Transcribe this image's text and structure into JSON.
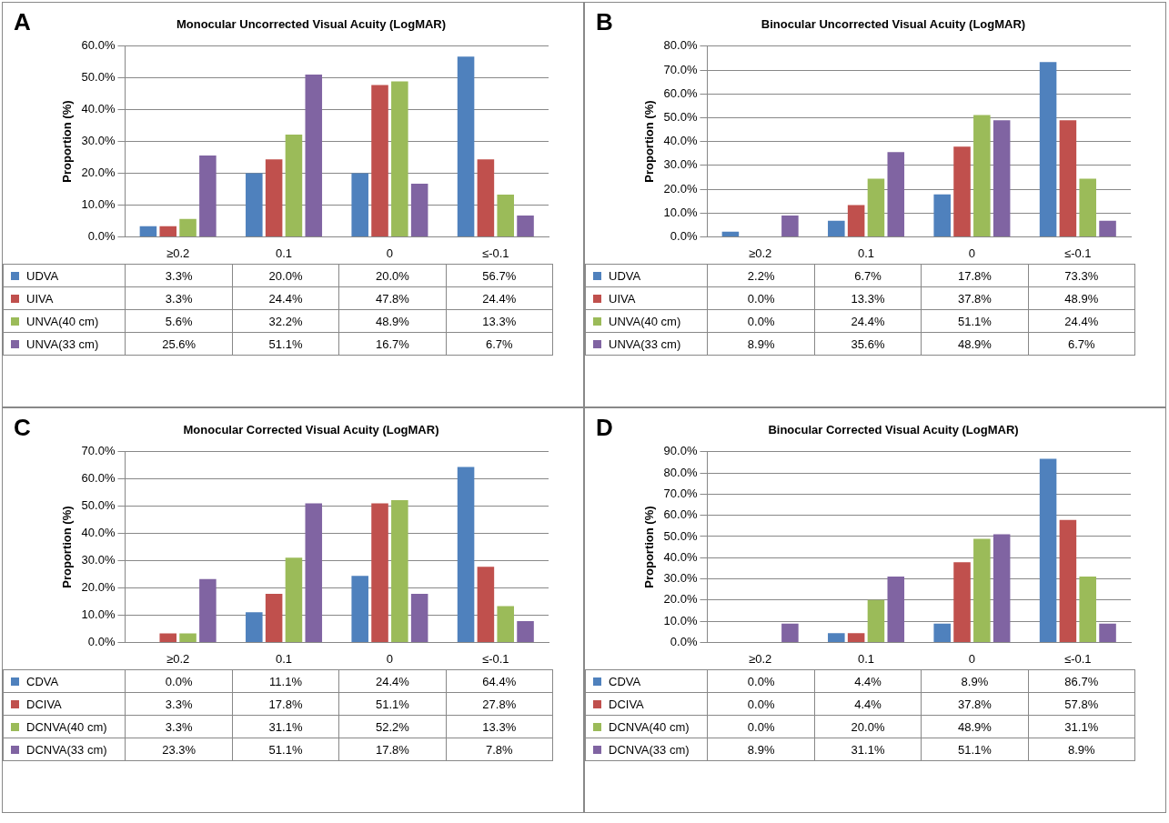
{
  "chart_data": [
    {
      "type": "bar",
      "title": "Monocular Uncorrected Visual Acuity (LogMAR)",
      "annotations": [
        "A"
      ],
      "ylabel": "Proportion (%)",
      "categories": [
        "≥0.2",
        "0.1",
        "0",
        "≤-0.1"
      ],
      "ylim": [
        0,
        60
      ],
      "yticks": [
        {
          "value": 0,
          "label": "0.0%"
        },
        {
          "value": 10,
          "label": "10.0%"
        },
        {
          "value": 20,
          "label": "20.0%"
        },
        {
          "value": 30,
          "label": "30.0%"
        },
        {
          "value": 40,
          "label": "40.0%"
        },
        {
          "value": 50,
          "label": "50.0%"
        },
        {
          "value": 60,
          "label": "60.0%"
        }
      ],
      "grid": "y",
      "legend": "bottom",
      "series": [
        {
          "name": "UDVA",
          "color": "#4f81bd",
          "values": [
            3.3,
            20.0,
            20.0,
            56.7
          ],
          "value_labels": [
            "3.3%",
            "20.0%",
            "20.0%",
            "56.7%"
          ]
        },
        {
          "name": "UIVA",
          "color": "#c0504d",
          "values": [
            3.3,
            24.4,
            47.8,
            24.4
          ],
          "value_labels": [
            "3.3%",
            "24.4%",
            "47.8%",
            "24.4%"
          ]
        },
        {
          "name": "UNVA(40 cm)",
          "color": "#9bbb59",
          "values": [
            5.6,
            32.2,
            48.9,
            13.3
          ],
          "value_labels": [
            "5.6%",
            "32.2%",
            "48.9%",
            "13.3%"
          ]
        },
        {
          "name": "UNVA(33 cm)",
          "color": "#8064a2",
          "values": [
            25.6,
            51.1,
            16.7,
            6.7
          ],
          "value_labels": [
            "25.6%",
            "51.1%",
            "16.7%",
            "6.7%"
          ]
        }
      ]
    },
    {
      "type": "bar",
      "title": "Binocular Uncorrected Visual Acuity (LogMAR)",
      "annotations": [
        "B"
      ],
      "ylabel": "Proportion (%)",
      "categories": [
        "≥0.2",
        "0.1",
        "0",
        "≤-0.1"
      ],
      "ylim": [
        0,
        80
      ],
      "yticks": [
        {
          "value": 0,
          "label": "0.0%"
        },
        {
          "value": 10,
          "label": "10.0%"
        },
        {
          "value": 20,
          "label": "20.0%"
        },
        {
          "value": 30,
          "label": "30.0%"
        },
        {
          "value": 40,
          "label": "40.0%"
        },
        {
          "value": 50,
          "label": "50.0%"
        },
        {
          "value": 60,
          "label": "60.0%"
        },
        {
          "value": 70,
          "label": "70.0%"
        },
        {
          "value": 80,
          "label": "80.0%"
        }
      ],
      "grid": "y",
      "legend": "bottom",
      "series": [
        {
          "name": "UDVA",
          "color": "#4f81bd",
          "values": [
            2.2,
            6.7,
            17.8,
            73.3
          ],
          "value_labels": [
            "2.2%",
            "6.7%",
            "17.8%",
            "73.3%"
          ]
        },
        {
          "name": "UIVA",
          "color": "#c0504d",
          "values": [
            0.0,
            13.3,
            37.8,
            48.9
          ],
          "value_labels": [
            "0.0%",
            "13.3%",
            "37.8%",
            "48.9%"
          ]
        },
        {
          "name": "UNVA(40 cm)",
          "color": "#9bbb59",
          "values": [
            0.0,
            24.4,
            51.1,
            24.4
          ],
          "value_labels": [
            "0.0%",
            "24.4%",
            "51.1%",
            "24.4%"
          ]
        },
        {
          "name": "UNVA(33 cm)",
          "color": "#8064a2",
          "values": [
            8.9,
            35.6,
            48.9,
            6.7
          ],
          "value_labels": [
            "8.9%",
            "35.6%",
            "48.9%",
            "6.7%"
          ]
        }
      ]
    },
    {
      "type": "bar",
      "title": "Monocular  Corrected Visual Acuity (LogMAR)",
      "annotations": [
        "C"
      ],
      "ylabel": "Proportion (%)",
      "categories": [
        "≥0.2",
        "0.1",
        "0",
        "≤-0.1"
      ],
      "ylim": [
        0,
        70
      ],
      "yticks": [
        {
          "value": 0,
          "label": "0.0%"
        },
        {
          "value": 10,
          "label": "10.0%"
        },
        {
          "value": 20,
          "label": "20.0%"
        },
        {
          "value": 30,
          "label": "30.0%"
        },
        {
          "value": 40,
          "label": "40.0%"
        },
        {
          "value": 50,
          "label": "50.0%"
        },
        {
          "value": 60,
          "label": "60.0%"
        },
        {
          "value": 70,
          "label": "70.0%"
        }
      ],
      "grid": "y",
      "legend": "bottom",
      "series": [
        {
          "name": "CDVA",
          "color": "#4f81bd",
          "values": [
            0.0,
            11.1,
            24.4,
            64.4
          ],
          "value_labels": [
            "0.0%",
            "11.1%",
            "24.4%",
            "64.4%"
          ]
        },
        {
          "name": "DCIVA",
          "color": "#c0504d",
          "values": [
            3.3,
            17.8,
            51.1,
            27.8
          ],
          "value_labels": [
            "3.3%",
            "17.8%",
            "51.1%",
            "27.8%"
          ]
        },
        {
          "name": "DCNVA(40 cm)",
          "color": "#9bbb59",
          "values": [
            3.3,
            31.1,
            52.2,
            13.3
          ],
          "value_labels": [
            "3.3%",
            "31.1%",
            "52.2%",
            "13.3%"
          ]
        },
        {
          "name": "DCNVA(33 cm)",
          "color": "#8064a2",
          "values": [
            23.3,
            51.1,
            17.8,
            7.8
          ],
          "value_labels": [
            "23.3%",
            "51.1%",
            "17.8%",
            "7.8%"
          ]
        }
      ]
    },
    {
      "type": "bar",
      "title": "Binocular Corrected Visual Acuity (LogMAR)",
      "annotations": [
        "D"
      ],
      "ylabel": "Proportion (%)",
      "categories": [
        "≥0.2",
        "0.1",
        "0",
        "≤-0.1"
      ],
      "ylim": [
        0,
        90
      ],
      "yticks": [
        {
          "value": 0,
          "label": "0.0%"
        },
        {
          "value": 10,
          "label": "10.0%"
        },
        {
          "value": 20,
          "label": "20.0%"
        },
        {
          "value": 30,
          "label": "30.0%"
        },
        {
          "value": 40,
          "label": "40.0%"
        },
        {
          "value": 50,
          "label": "50.0%"
        },
        {
          "value": 60,
          "label": "60.0%"
        },
        {
          "value": 70,
          "label": "70.0%"
        },
        {
          "value": 80,
          "label": "80.0%"
        },
        {
          "value": 90,
          "label": "90.0%"
        }
      ],
      "grid": "y",
      "legend": "bottom",
      "series": [
        {
          "name": "CDVA",
          "color": "#4f81bd",
          "values": [
            0.0,
            4.4,
            8.9,
            86.7
          ],
          "value_labels": [
            "0.0%",
            "4.4%",
            "8.9%",
            "86.7%"
          ]
        },
        {
          "name": "DCIVA",
          "color": "#c0504d",
          "values": [
            0.0,
            4.4,
            37.8,
            57.8
          ],
          "value_labels": [
            "0.0%",
            "4.4%",
            "37.8%",
            "57.8%"
          ]
        },
        {
          "name": "DCNVA(40 cm)",
          "color": "#9bbb59",
          "values": [
            0.0,
            20.0,
            48.9,
            31.1
          ],
          "value_labels": [
            "0.0%",
            "20.0%",
            "48.9%",
            "31.1%"
          ]
        },
        {
          "name": "DCNVA(33 cm)",
          "color": "#8064a2",
          "values": [
            8.9,
            31.1,
            51.1,
            8.9
          ],
          "value_labels": [
            "8.9%",
            "31.1%",
            "51.1%",
            "8.9%"
          ]
        }
      ]
    }
  ]
}
